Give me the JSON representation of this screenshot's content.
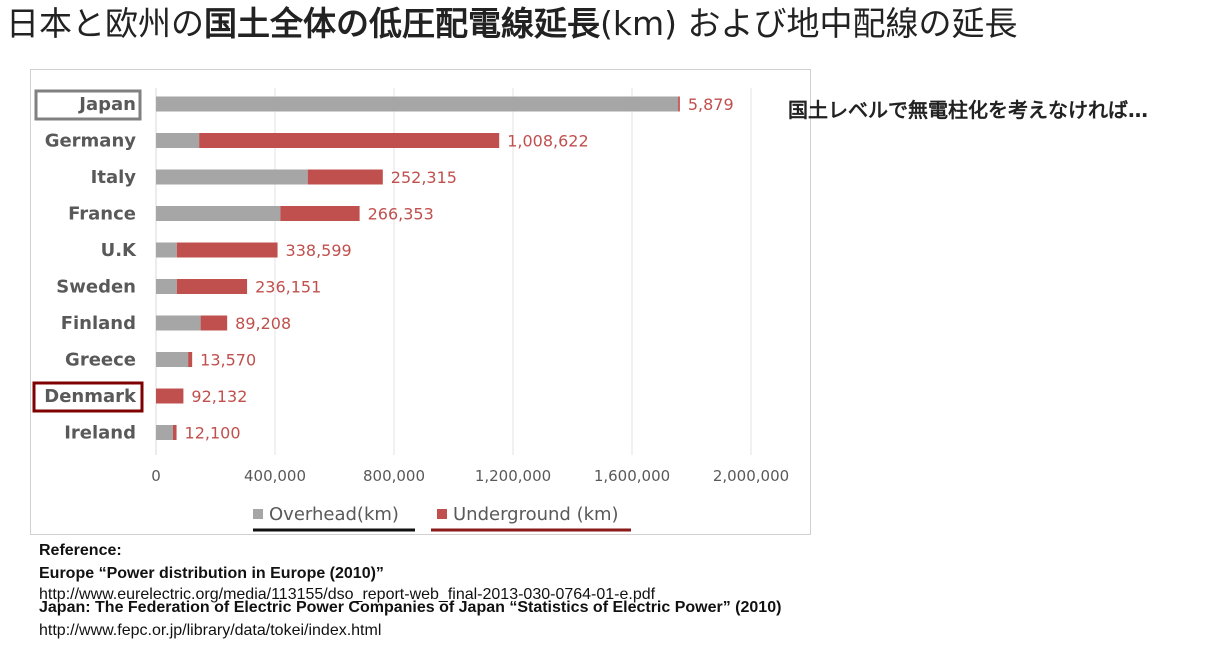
{
  "title": {
    "part1": "日本と欧州の",
    "part2": "国土全体の低圧配電線延長",
    "part3": "(km) および地中配線の延長"
  },
  "side_note": "国土レベルで無電柱化を考えなければ…",
  "references": {
    "heading": "Reference:",
    "europe": "Europe “Power distribution in Europe (2010)”",
    "europe_url": "http://www.eurelectric.org/media/113155/dso_report-web_final-2013-030-0764-01-e.pdf",
    "japan": "Japan: The Federation of Electric Power Companies of Japan “Statistics of Electric Power” (2010)",
    "japan_url": "http://www.fepc.or.jp/library/data/tokei/index.html"
  },
  "chart_data": {
    "type": "bar",
    "orientation": "horizontal",
    "stacked": true,
    "categories": [
      "Japan",
      "Germany",
      "Italy",
      "France",
      "U.K",
      "Sweden",
      "Finland",
      "Greece",
      "Denmark",
      "Ireland"
    ],
    "series": [
      {
        "name": "Overhead(km)",
        "color": "#a6a6a6",
        "values": [
          1755000,
          145000,
          510000,
          418000,
          70000,
          70000,
          150000,
          108000,
          0,
          57000
        ]
      },
      {
        "name": "Underground (km)",
        "color": "#c0504d",
        "values": [
          5879,
          1008622,
          252315,
          266353,
          338599,
          236151,
          89208,
          13570,
          92132,
          12100
        ]
      }
    ],
    "data_labels": [
      "5,879",
      "1,008,622",
      "252,315",
      "266,353",
      "338,599",
      "236,151",
      "89,208",
      "13,570",
      "92,132",
      "12,100"
    ],
    "xlim": [
      0,
      2000000
    ],
    "x_ticks": [
      0,
      400000,
      800000,
      1200000,
      1600000,
      2000000
    ],
    "x_tick_labels": [
      "0",
      "400,000",
      "800,000",
      "1,200,000",
      "1,600,000",
      "2,000,000"
    ],
    "highlighted_categories": {
      "Japan": "#808080",
      "Denmark": "#7f0000"
    },
    "legend_underline_colors": {
      "Overhead(km)": "#111111",
      "Underground (km)": "#8b1a1a"
    },
    "legend_position": "bottom",
    "grid": "vertical"
  }
}
